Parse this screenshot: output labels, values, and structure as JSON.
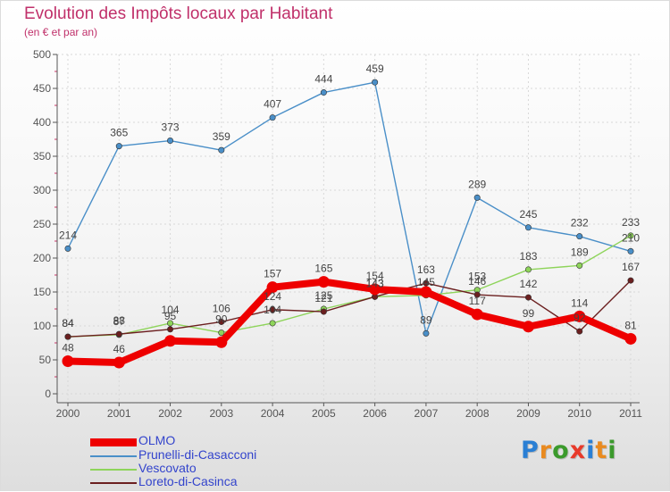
{
  "title": "Evolution des Impôts locaux par Habitant",
  "subtitle": "(en € et par an)",
  "logo": {
    "letters": [
      "P",
      "r",
      "o",
      "x",
      "i",
      "t",
      "i"
    ],
    "colors": [
      "#2a7fd4",
      "#e98a1f",
      "#3b9a2c",
      "#e83a2a",
      "#2a7fd4",
      "#e98a1f",
      "#3b9a2c"
    ]
  },
  "chart_data": {
    "type": "line",
    "title": "Evolution des Impôts locaux par Habitant",
    "subtitle": "(en € et par an)",
    "categories": [
      "2000",
      "2001",
      "2002",
      "2003",
      "2004",
      "2005",
      "2006",
      "2007",
      "2008",
      "2009",
      "2010",
      "2011"
    ],
    "ylim": [
      0,
      500
    ],
    "yticks": [
      0,
      50,
      100,
      150,
      200,
      250,
      300,
      350,
      400,
      450,
      500
    ],
    "grid": true,
    "legend_position": "bottom-left",
    "series": [
      {
        "name": "OLMO",
        "color": "#ee0000",
        "values": [
          48,
          46,
          78,
          76,
          157,
          165,
          154,
          150,
          117,
          99,
          114,
          81
        ],
        "labels": [
          "48",
          "46",
          "",
          "",
          "157",
          "165",
          "154",
          "",
          "117",
          "99",
          "114",
          "81"
        ]
      },
      {
        "name": "Prunelli-di-Casacconi",
        "color": "#4a8fc8",
        "values": [
          214,
          365,
          373,
          359,
          407,
          444,
          459,
          89,
          289,
          245,
          232,
          210
        ],
        "labels": [
          "214",
          "365",
          "373",
          "359",
          "407",
          "444",
          "459",
          "89",
          "289",
          "245",
          "232",
          "210"
        ]
      },
      {
        "name": "Vescovato",
        "color": "#8ed45a",
        "values": [
          84,
          87,
          104,
          90,
          104,
          125,
          143,
          145,
          153,
          183,
          189,
          233
        ],
        "labels": [
          "84",
          "87",
          "104",
          "90",
          "104",
          "125",
          "143",
          "145",
          "153",
          "183",
          "189",
          "233"
        ]
      },
      {
        "name": "Loreto-di-Casinca",
        "color": "#6b1f1f",
        "values": [
          84,
          88,
          95,
          106,
          124,
          121,
          143,
          163,
          146,
          142,
          92,
          167
        ],
        "labels": [
          "84",
          "88",
          "95",
          "106",
          "124",
          "121",
          "143",
          "163",
          "146",
          "142",
          "92",
          "167"
        ]
      }
    ]
  }
}
